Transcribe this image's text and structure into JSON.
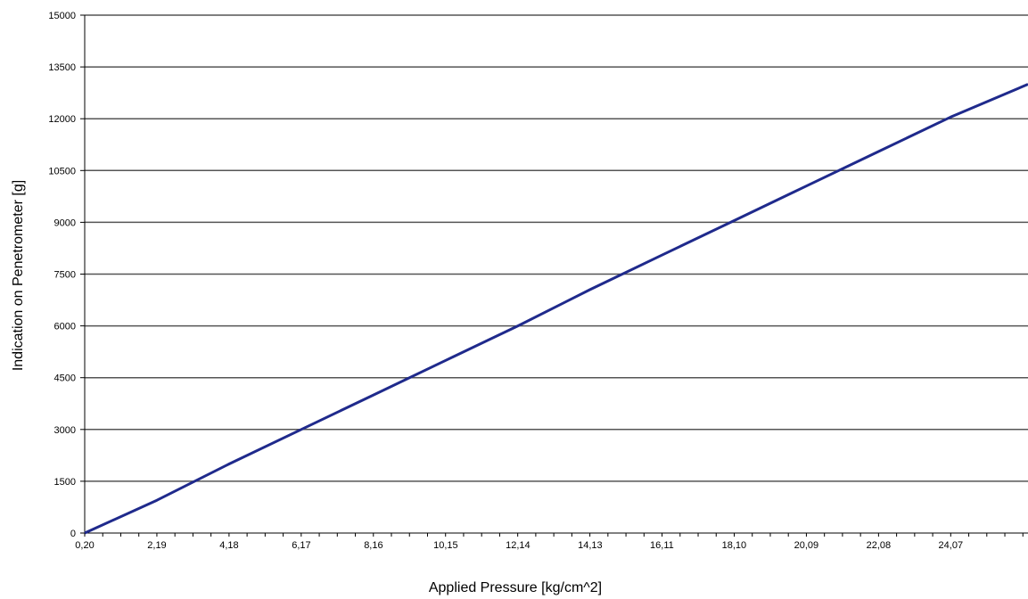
{
  "chart_data": {
    "type": "line",
    "xlabel": "Applied Pressure [kg/cm^2]",
    "ylabel": "Indication on Penetrometer [g]",
    "ylim": [
      0,
      15000
    ],
    "xlim": [
      0.2,
      26.2
    ],
    "x_tick_labels": [
      "0,20",
      "2,19",
      "4,18",
      "6,17",
      "8,16",
      "10,15",
      "12,14",
      "14,13",
      "16,11",
      "18,10",
      "20,09",
      "22,08",
      "24,07"
    ],
    "x_tick_values": [
      0.2,
      2.19,
      4.18,
      6.17,
      8.16,
      10.15,
      12.14,
      14.13,
      16.11,
      18.1,
      20.09,
      22.08,
      24.07
    ],
    "y_tick_labels": [
      "0",
      "1500",
      "3000",
      "4500",
      "6000",
      "7500",
      "9000",
      "10500",
      "12000",
      "13500",
      "15000"
    ],
    "y_tick_values": [
      0,
      1500,
      3000,
      4500,
      6000,
      7500,
      9000,
      10500,
      12000,
      13500,
      15000
    ],
    "grid": "horizontal",
    "legend": "none",
    "series": [
      {
        "color": "#1f2a8c",
        "x": [
          0.2,
          2.19,
          4.18,
          6.17,
          8.16,
          10.15,
          12.14,
          14.13,
          16.11,
          18.1,
          20.09,
          22.08,
          24.07,
          26.2
        ],
        "values": [
          0,
          950,
          2000,
          3000,
          4000,
          5000,
          6000,
          7050,
          8050,
          9050,
          10050,
          11050,
          12050,
          13000
        ]
      }
    ]
  }
}
